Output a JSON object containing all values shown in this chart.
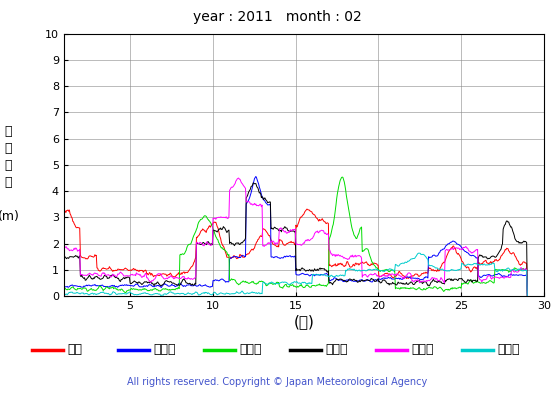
{
  "title": "year : 2011   month : 02",
  "xlabel": "(日)",
  "ylabel_lines": [
    "有",
    "義",
    "波",
    "高",
    "",
    "(m)"
  ],
  "copyright": "All rights reserved. Copyright © Japan Meteorological Agency",
  "ylim": [
    0,
    10
  ],
  "xlim": [
    1,
    29
  ],
  "yticks": [
    0,
    1,
    2,
    3,
    4,
    5,
    6,
    7,
    8,
    9,
    10
  ],
  "xticks": [
    5,
    10,
    15,
    20,
    25,
    30
  ],
  "legend": [
    {
      "label": "松前",
      "color": "#ff0000"
    },
    {
      "label": "江ノ島",
      "color": "#0000ff"
    },
    {
      "label": "石廈崎",
      "color": "#00dd00"
    },
    {
      "label": "経ヶ岸",
      "color": "#000000"
    },
    {
      "label": "福江島",
      "color": "#ff00ff"
    },
    {
      "label": "佐多岸",
      "color": "#00cccc"
    }
  ],
  "background_color": "#ffffff",
  "grid_color": "#888888"
}
